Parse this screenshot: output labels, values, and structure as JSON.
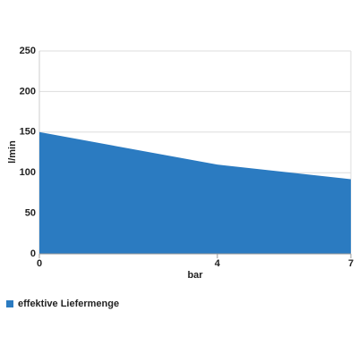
{
  "chart_data": {
    "type": "area",
    "x": [
      0,
      4,
      7
    ],
    "series": [
      {
        "name": "effektive Liefermenge",
        "color": "#2b7bc1",
        "values": [
          150,
          110,
          92
        ]
      }
    ],
    "xlim": [
      0,
      7
    ],
    "xticks": [
      0,
      4,
      7
    ],
    "ylim": [
      0,
      250
    ],
    "yticks": [
      0,
      50,
      100,
      150,
      200,
      250
    ],
    "x_label": "bar",
    "y_label": "l/min",
    "grid": true,
    "legend": "bottom-left"
  }
}
